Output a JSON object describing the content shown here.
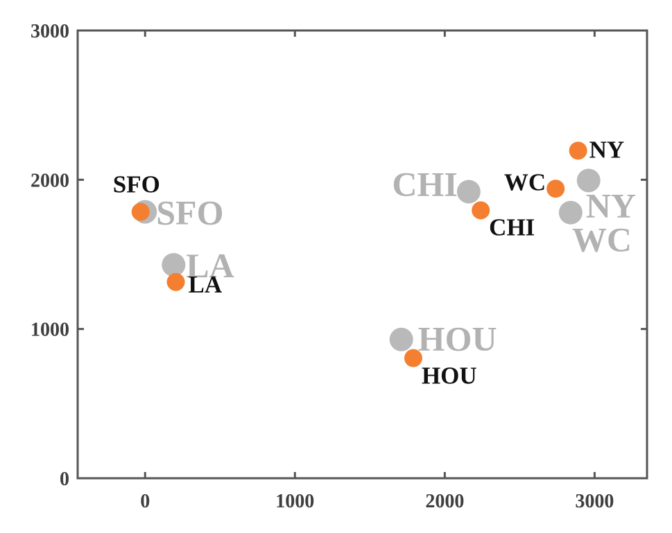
{
  "chart_data": {
    "type": "scatter",
    "title": "",
    "xlabel": "",
    "ylabel": "",
    "xlim": [
      -450,
      3350
    ],
    "ylim": [
      0,
      3000
    ],
    "xticks": [
      "0",
      "1000",
      "2000",
      "3000"
    ],
    "yticks": [
      "0",
      "1000",
      "2000",
      "3000"
    ],
    "grid": false,
    "legend": "none",
    "colors": {
      "gray": "#b9b9b9",
      "orange": "#f47f30",
      "axis": "#555555"
    },
    "series": [
      {
        "color": "#b9b9b9",
        "points": [
          {
            "label": "SFO",
            "x": 0,
            "y": 1785
          },
          {
            "label": "LA",
            "x": 190,
            "y": 1430
          },
          {
            "label": "CHI",
            "x": 2160,
            "y": 1920
          },
          {
            "label": "NY",
            "x": 2960,
            "y": 1995
          },
          {
            "label": "WC",
            "x": 2840,
            "y": 1780
          },
          {
            "label": "HOU",
            "x": 1710,
            "y": 930
          }
        ]
      },
      {
        "color": "#f47f30",
        "points": [
          {
            "label": "SFO",
            "x": -30,
            "y": 1785
          },
          {
            "label": "LA",
            "x": 205,
            "y": 1315
          },
          {
            "label": "CHI",
            "x": 2240,
            "y": 1795
          },
          {
            "label": "NY",
            "x": 2890,
            "y": 2195
          },
          {
            "label": "WC",
            "x": 2740,
            "y": 1940
          },
          {
            "label": "HOU",
            "x": 1790,
            "y": 805
          }
        ]
      }
    ]
  }
}
